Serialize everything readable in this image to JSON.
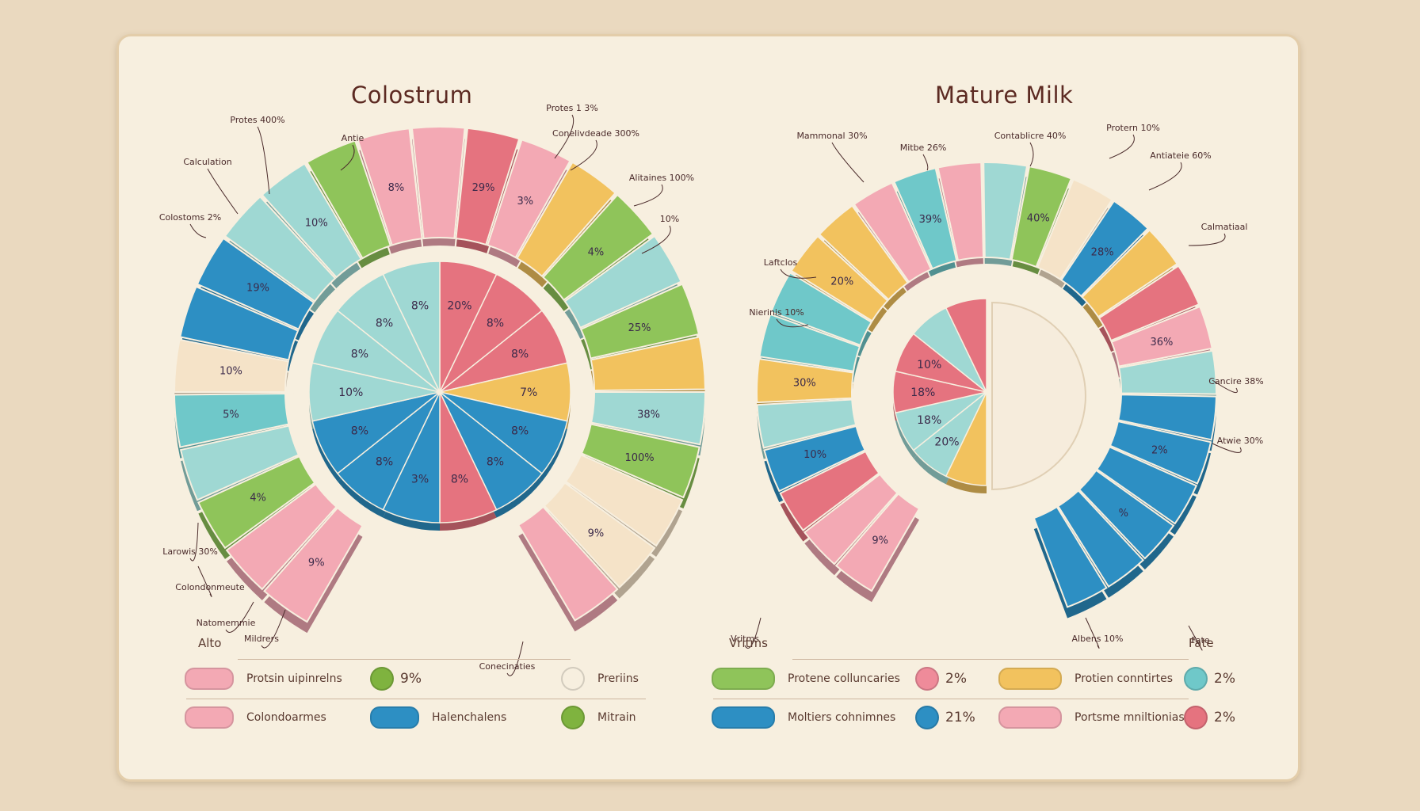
{
  "chart_data": [
    {
      "type": "pie",
      "title": "Colostrum",
      "inner_slices": [
        {
          "label": "20%",
          "color": "#e5737f"
        },
        {
          "label": "8%",
          "color": "#e5737f"
        },
        {
          "label": "8%",
          "color": "#e5737f"
        },
        {
          "label": "7%",
          "color": "#f2c25e"
        },
        {
          "label": "8%",
          "color": "#2d8fc3"
        },
        {
          "label": "8%",
          "color": "#2d8fc3"
        },
        {
          "label": "8%",
          "color": "#e5737f"
        },
        {
          "label": "3%",
          "color": "#2d8fc3"
        },
        {
          "label": "8%",
          "color": "#2d8fc3"
        },
        {
          "label": "8%",
          "color": "#2d8fc3"
        },
        {
          "label": "10%",
          "color": "#9fd8d3"
        },
        {
          "label": "8%",
          "color": "#9fd8d3"
        },
        {
          "label": "8%",
          "color": "#9fd8d3"
        },
        {
          "label": "8%",
          "color": "#9fd8d3"
        }
      ],
      "ring_labels": [
        "9%",
        "4%",
        "5%",
        "10%",
        "19%",
        "10%",
        "8%",
        "29%",
        "3%",
        "4%",
        "25%",
        "38%",
        "100%",
        "9%"
      ],
      "callouts": [
        "Protes 400%",
        "Antie",
        "Calculation",
        "Colostoms 2%",
        "Protes 1 3%",
        "Conelivdeade 300%",
        "Alitaines 100%",
        "10%",
        "Larowis 30%",
        "Colondonmeute",
        "Natomemmie",
        "Mildrers",
        "Conecinaties"
      ]
    },
    {
      "type": "pie",
      "title": "Mature Milk",
      "inner_slices": [
        {
          "label": "",
          "color": "#f2c25e"
        },
        {
          "label": "20%",
          "color": "#9fd8d3"
        },
        {
          "label": "18%",
          "color": "#9fd8d3"
        },
        {
          "label": "18%",
          "color": "#e5737f"
        },
        {
          "label": "10%",
          "color": "#e5737f"
        },
        {
          "label": "",
          "color": "#9fd8d3"
        },
        {
          "label": "",
          "color": "#e5737f"
        }
      ],
      "ring_labels": [
        "9%",
        "10%",
        "30%",
        "20%",
        "39%",
        "40%",
        "28%",
        "36%",
        "2%",
        "%"
      ],
      "callouts": [
        "Mammonal 30%",
        "Mitbe 26%",
        "Contablicre 40%",
        "Protern 10%",
        "Antiateie 60%",
        "Calmatiaal",
        "Laftclos",
        "Nierinis 10%",
        "Cancire 38%",
        "Atwie 30%",
        "Albens 10%",
        "Vritms",
        "Fate"
      ]
    }
  ],
  "legend": {
    "left_header": "Alto",
    "right_header_1": "Vritms",
    "right_header_2": "Fate",
    "items": [
      {
        "label": "Protsin uipinrelns",
        "swatch": "#f3a9b4",
        "pct": "9%",
        "dot": "#7fb33f"
      },
      {
        "label": "Preriins",
        "dot": "#f7efdf"
      },
      {
        "label": "Colondoarmes",
        "swatch": "#f3a9b4"
      },
      {
        "label": "Halenchalens",
        "swatch": "#2d8fc3"
      },
      {
        "label": "Mitrain",
        "dot": "#7fb33f"
      },
      {
        "label": "Protene colluncaries",
        "swatch": "#8fc45a",
        "pct": "2%",
        "dot": "#ef8b9a"
      },
      {
        "label": "Protien conntirtes",
        "swatch": "#f2c25e",
        "pct": "2%",
        "dot": "#6fc8c9"
      },
      {
        "label": "Moltiers cohnimnes",
        "swatch": "#2d8fc3",
        "pct": "21%",
        "dot": "#2d8fc3"
      },
      {
        "label": "Portsme mniltionias",
        "swatch": "#f3a9b4",
        "pct": "2%",
        "dot": "#e5737f"
      }
    ]
  }
}
